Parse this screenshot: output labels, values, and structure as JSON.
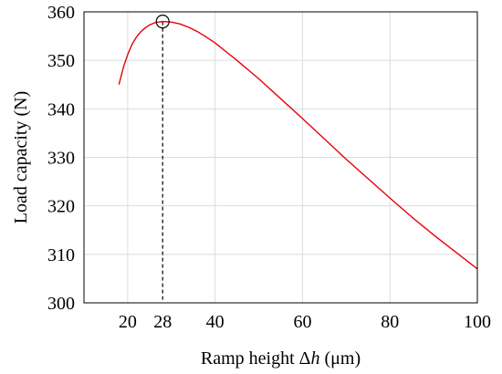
{
  "chart_data": {
    "type": "line",
    "title": "",
    "xlabel_prefix": "Ramp height ",
    "xlabel_symbol": "Δ",
    "xlabel_var": "h",
    "xlabel_suffix": " (μm)",
    "ylabel": "Load capacity (N)",
    "xlim": [
      10,
      100
    ],
    "ylim": [
      300,
      360
    ],
    "x_ticks": [
      20,
      40,
      60,
      80,
      100
    ],
    "x_tick_labels": [
      "20",
      "40",
      "60",
      "80",
      "100"
    ],
    "y_ticks": [
      300,
      310,
      320,
      330,
      340,
      350,
      360
    ],
    "y_tick_labels": [
      "300",
      "310",
      "320",
      "330",
      "340",
      "350",
      "360"
    ],
    "grid": true,
    "series": [
      {
        "color": "#e8000b",
        "x": [
          18,
          19,
          20,
          21,
          22,
          23,
          24,
          25,
          26,
          27,
          28,
          30,
          32,
          34,
          36,
          38,
          40,
          45,
          50,
          55,
          60,
          65,
          70,
          75,
          80,
          85,
          90,
          95,
          100
        ],
        "y": [
          345,
          348.5,
          351.2,
          353.3,
          354.8,
          355.9,
          356.7,
          357.3,
          357.7,
          357.9,
          358,
          357.9,
          357.5,
          356.8,
          355.9,
          354.8,
          353.6,
          350.0,
          346.2,
          342.1,
          338.0,
          333.8,
          329.6,
          325.6,
          321.6,
          317.7,
          314.0,
          310.5,
          307.0
        ]
      }
    ],
    "annotations": {
      "optimum_x": 28,
      "optimum_y": 358,
      "optimum_label": "28",
      "marker": "open-circle",
      "dropline": "dashed-vertical"
    },
    "colors": {
      "line": "#e8000b",
      "grid": "#dcdcdc",
      "axes": "#000000"
    }
  }
}
